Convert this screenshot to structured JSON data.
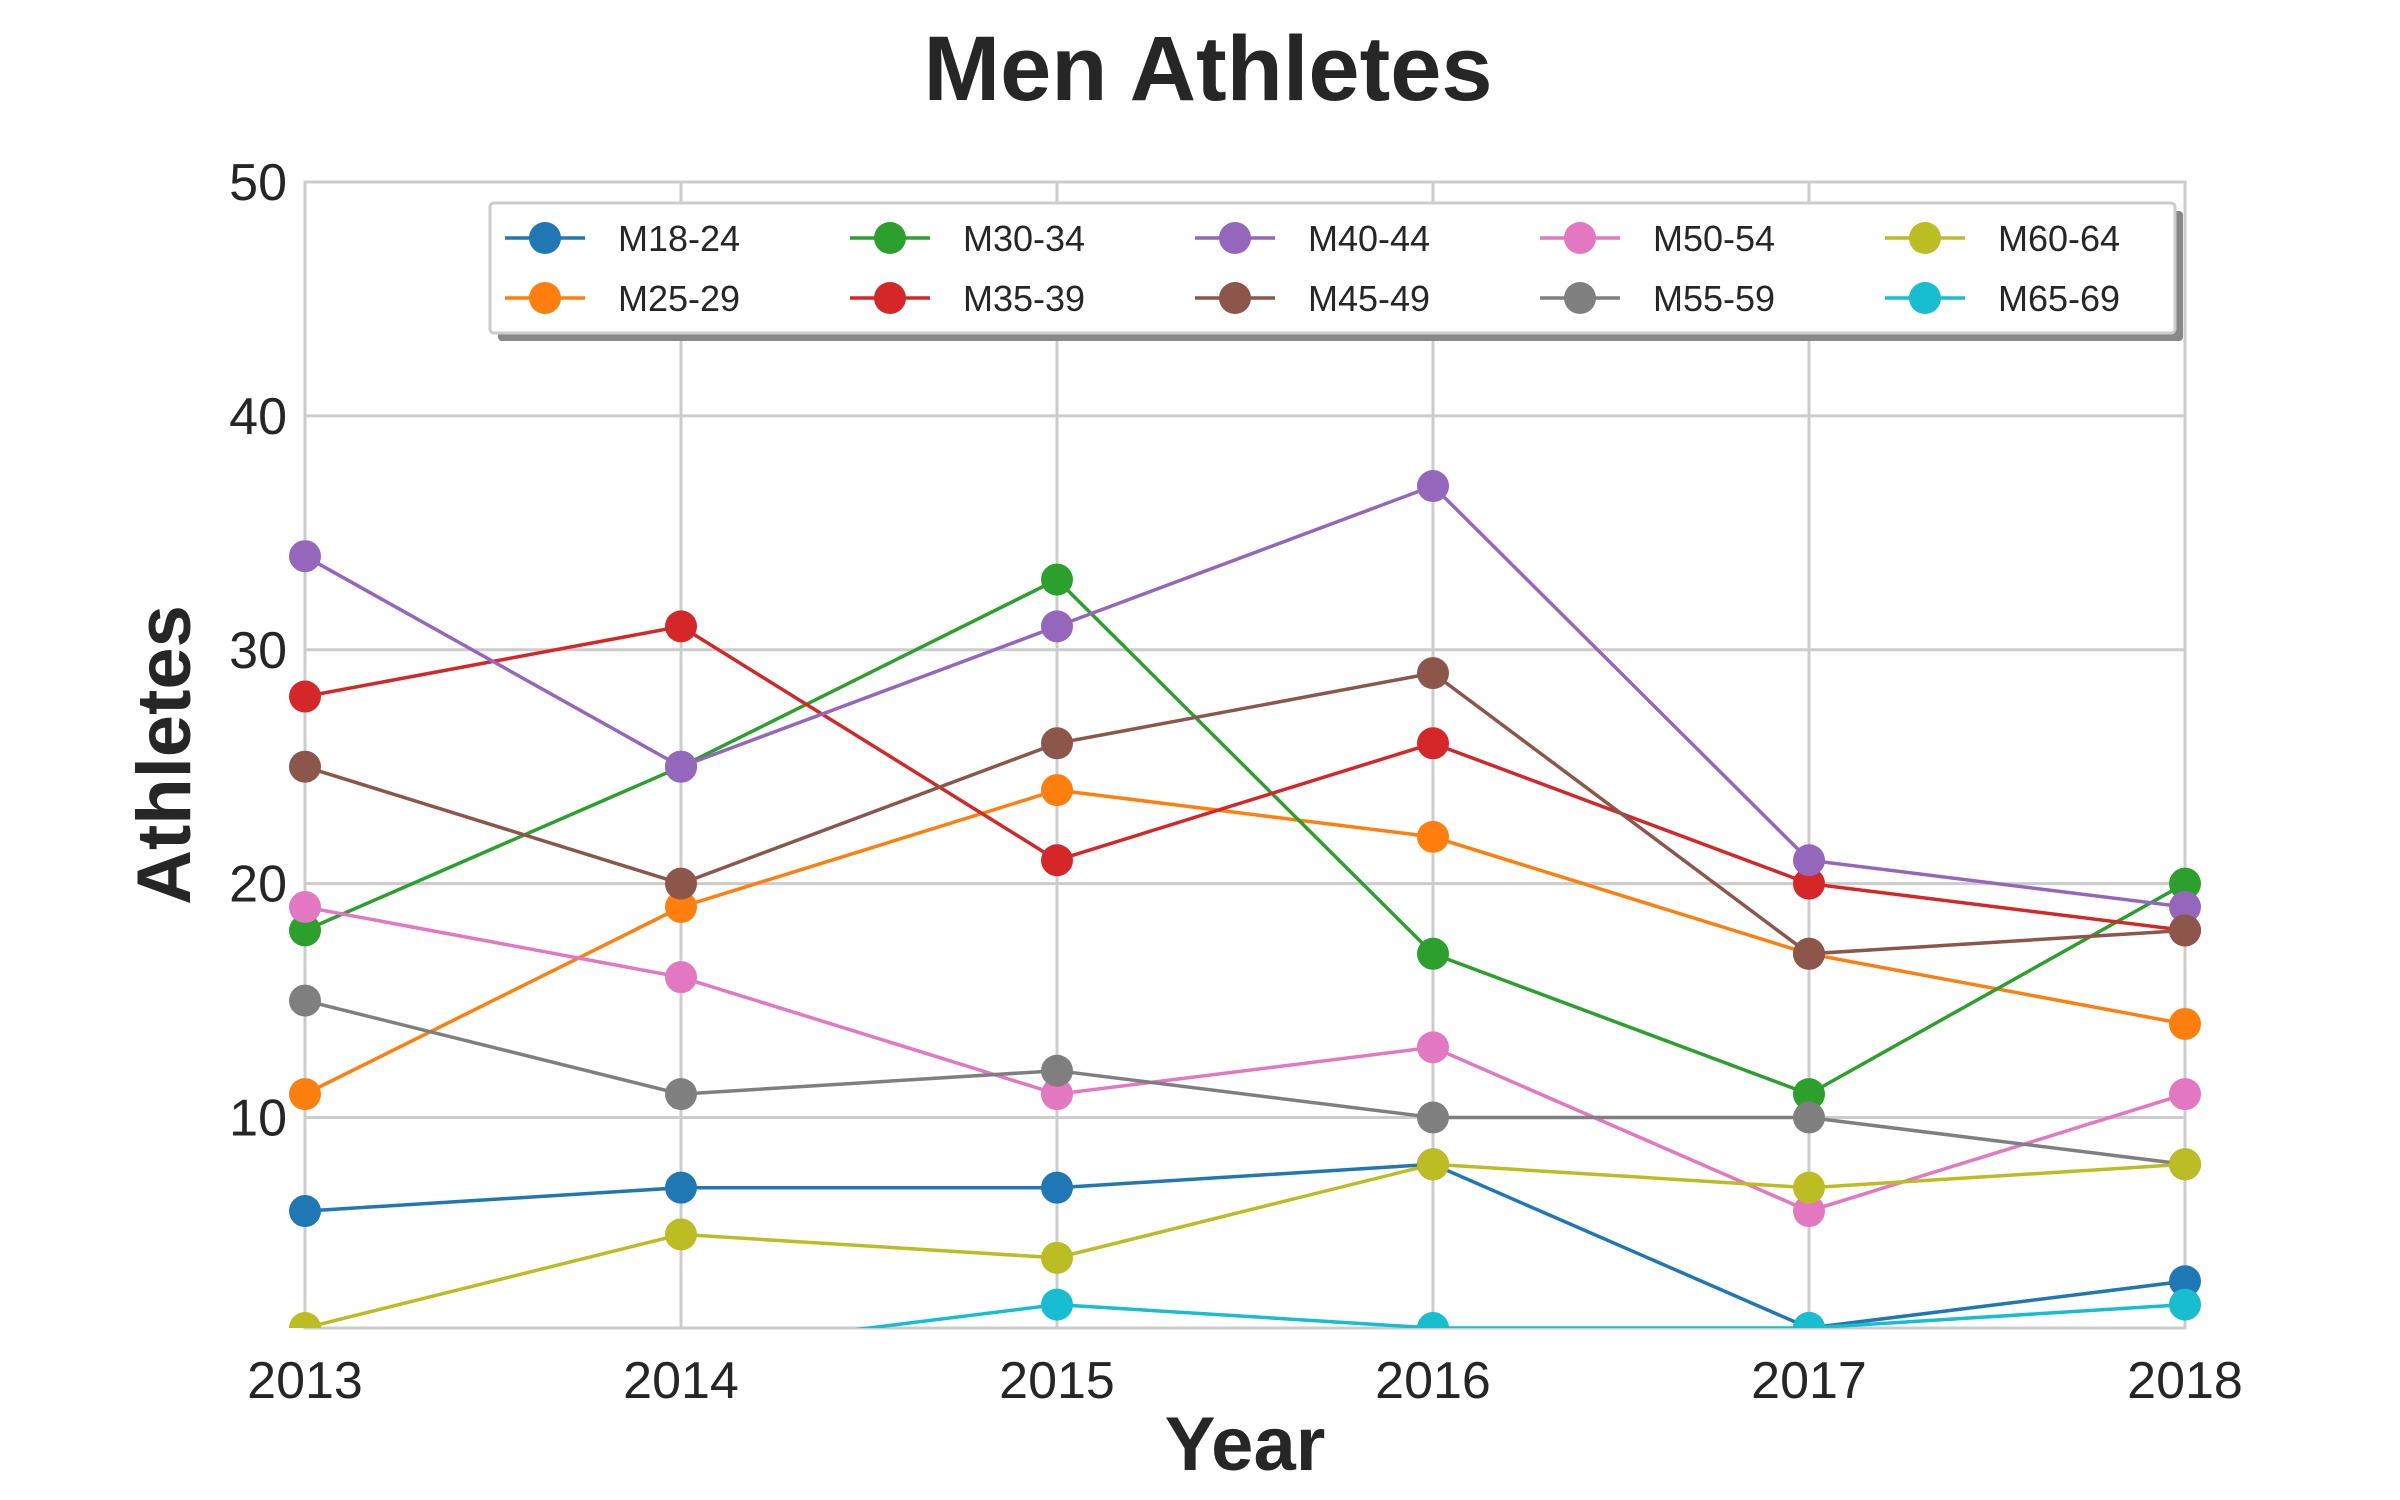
{
  "chart_data": {
    "type": "line",
    "title": "Men Athletes",
    "xlabel": "Year",
    "ylabel": "Athletes",
    "x": [
      2013,
      2014,
      2015,
      2016,
      2017,
      2018
    ],
    "xlim": [
      2013,
      2018
    ],
    "ylim": [
      1,
      50
    ],
    "yticks": [
      10,
      20,
      30,
      40,
      50
    ],
    "grid": true,
    "legend_placement": "upper-right",
    "legend_columns": 5,
    "series": [
      {
        "name": "M18-24",
        "color": "#1f77b4",
        "values": [
          6,
          7,
          7,
          8,
          1,
          3
        ]
      },
      {
        "name": "M25-29",
        "color": "#ff7f0e",
        "values": [
          11,
          19,
          24,
          22,
          17,
          14
        ]
      },
      {
        "name": "M30-34",
        "color": "#2ca02c",
        "values": [
          18,
          25,
          33,
          17,
          11,
          20
        ]
      },
      {
        "name": "M35-39",
        "color": "#d62728",
        "values": [
          28,
          31,
          21,
          26,
          20,
          18
        ]
      },
      {
        "name": "M40-44",
        "color": "#9467bd",
        "values": [
          34,
          25,
          31,
          37,
          21,
          19
        ]
      },
      {
        "name": "M45-49",
        "color": "#8c564b",
        "values": [
          25,
          20,
          26,
          29,
          17,
          18
        ]
      },
      {
        "name": "M50-54",
        "color": "#e377c2",
        "values": [
          19,
          16,
          11,
          13,
          6,
          11
        ]
      },
      {
        "name": "M55-59",
        "color": "#7f7f7f",
        "values": [
          15,
          11,
          12,
          10,
          10,
          8
        ]
      },
      {
        "name": "M60-64",
        "color": "#bcbd22",
        "values": [
          1,
          5,
          4,
          8,
          7,
          8
        ]
      },
      {
        "name": "M65-69",
        "color": "#17becf",
        "values": [
          null,
          0,
          2,
          1,
          1,
          2
        ]
      }
    ]
  }
}
